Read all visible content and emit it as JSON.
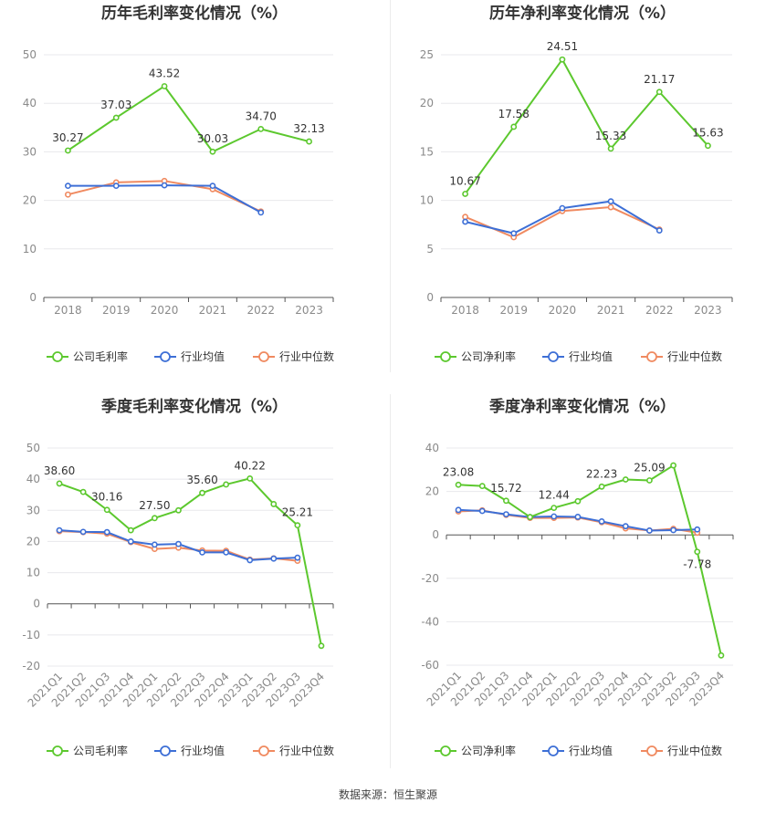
{
  "colors": {
    "company": "#5cc82e",
    "industry_avg": "#3d6fd6",
    "industry_median": "#f08a60"
  },
  "legend": {
    "gross_company": "公司毛利率",
    "net_company": "公司净利率",
    "avg": "行业均值",
    "median": "行业中位数"
  },
  "source_text": "数据来源：恒生聚源",
  "chart_data": [
    {
      "type": "line",
      "title": "历年毛利率变化情况（%）",
      "categories": [
        "2018",
        "2019",
        "2020",
        "2021",
        "2022",
        "2023"
      ],
      "ylim": [
        0,
        50
      ],
      "yticks": [
        0,
        10,
        20,
        30,
        40,
        50
      ],
      "series": [
        {
          "name": "公司毛利率",
          "values": [
            30.27,
            37.03,
            43.52,
            30.03,
            34.7,
            32.13
          ]
        },
        {
          "name": "行业均值",
          "values": [
            23.0,
            23.0,
            23.1,
            23.0,
            17.5,
            null
          ]
        },
        {
          "name": "行业中位数",
          "values": [
            21.2,
            23.7,
            24.0,
            22.3,
            17.7,
            null
          ]
        }
      ],
      "labels": [
        "30.27",
        "37.03",
        "43.52",
        "30.03",
        "34.70",
        "32.13"
      ]
    },
    {
      "type": "line",
      "title": "历年净利率变化情况（%）",
      "categories": [
        "2018",
        "2019",
        "2020",
        "2021",
        "2022",
        "2023"
      ],
      "ylim": [
        0,
        25
      ],
      "yticks": [
        0,
        5,
        10,
        15,
        20,
        25
      ],
      "series": [
        {
          "name": "公司净利率",
          "values": [
            10.67,
            17.58,
            24.51,
            15.33,
            21.17,
            15.63
          ]
        },
        {
          "name": "行业均值",
          "values": [
            7.8,
            6.6,
            9.2,
            9.9,
            6.9,
            null
          ]
        },
        {
          "name": "行业中位数",
          "values": [
            8.3,
            6.2,
            8.9,
            9.3,
            7.0,
            null
          ]
        }
      ],
      "labels": [
        "10.67",
        "17.58",
        "24.51",
        "15.33",
        "21.17",
        "15.63"
      ]
    },
    {
      "type": "line",
      "title": "季度毛利率变化情况（%）",
      "categories": [
        "2021Q1",
        "2021Q2",
        "2021Q3",
        "2021Q4",
        "2022Q1",
        "2022Q2",
        "2022Q3",
        "2022Q4",
        "2023Q1",
        "2023Q2",
        "2023Q3",
        "2023Q4"
      ],
      "ylim": [
        -20,
        50
      ],
      "yticks": [
        -20,
        -10,
        0,
        10,
        20,
        30,
        40,
        50
      ],
      "series": [
        {
          "name": "公司毛利率",
          "values": [
            38.6,
            35.9,
            30.16,
            23.6,
            27.5,
            30.0,
            35.6,
            38.3,
            40.22,
            32.0,
            25.21,
            -13.5
          ]
        },
        {
          "name": "行业均值",
          "values": [
            23.6,
            23.1,
            23.0,
            20.0,
            19.0,
            19.2,
            16.5,
            16.5,
            14.0,
            14.5,
            14.8,
            null
          ]
        },
        {
          "name": "行业中位数",
          "values": [
            23.3,
            23.0,
            22.5,
            19.8,
            17.6,
            18.0,
            17.1,
            17.0,
            14.2,
            14.6,
            13.8,
            null
          ]
        }
      ],
      "labels": [
        "38.60",
        "",
        "30.16",
        "",
        "27.50",
        "",
        "35.60",
        "",
        "40.22",
        "",
        "25.21",
        ""
      ]
    },
    {
      "type": "line",
      "title": "季度净利率变化情况（%）",
      "categories": [
        "2021Q1",
        "2021Q2",
        "2021Q3",
        "2021Q4",
        "2022Q1",
        "2022Q2",
        "2022Q3",
        "2022Q4",
        "2023Q1",
        "2023Q2",
        "2023Q3",
        "2023Q4"
      ],
      "ylim": [
        -60,
        40
      ],
      "yticks": [
        -60,
        -40,
        -20,
        0,
        20,
        40
      ],
      "series": [
        {
          "name": "公司净利率",
          "values": [
            23.08,
            22.5,
            15.72,
            8.2,
            12.44,
            15.5,
            22.23,
            25.5,
            25.09,
            32.0,
            -7.78,
            -55.5
          ]
        },
        {
          "name": "行业均值",
          "values": [
            11.5,
            11.0,
            9.5,
            8.2,
            8.5,
            8.3,
            6.2,
            4.0,
            2.0,
            2.2,
            2.5,
            null
          ]
        },
        {
          "name": "行业中位数",
          "values": [
            10.8,
            11.3,
            9.2,
            7.8,
            7.8,
            8.0,
            5.8,
            3.0,
            2.0,
            2.8,
            1.0,
            null
          ]
        }
      ],
      "labels": [
        "23.08",
        "",
        "15.72",
        "",
        "12.44",
        "",
        "22.23",
        "",
        "25.09",
        "",
        "-7.78",
        ""
      ]
    }
  ]
}
